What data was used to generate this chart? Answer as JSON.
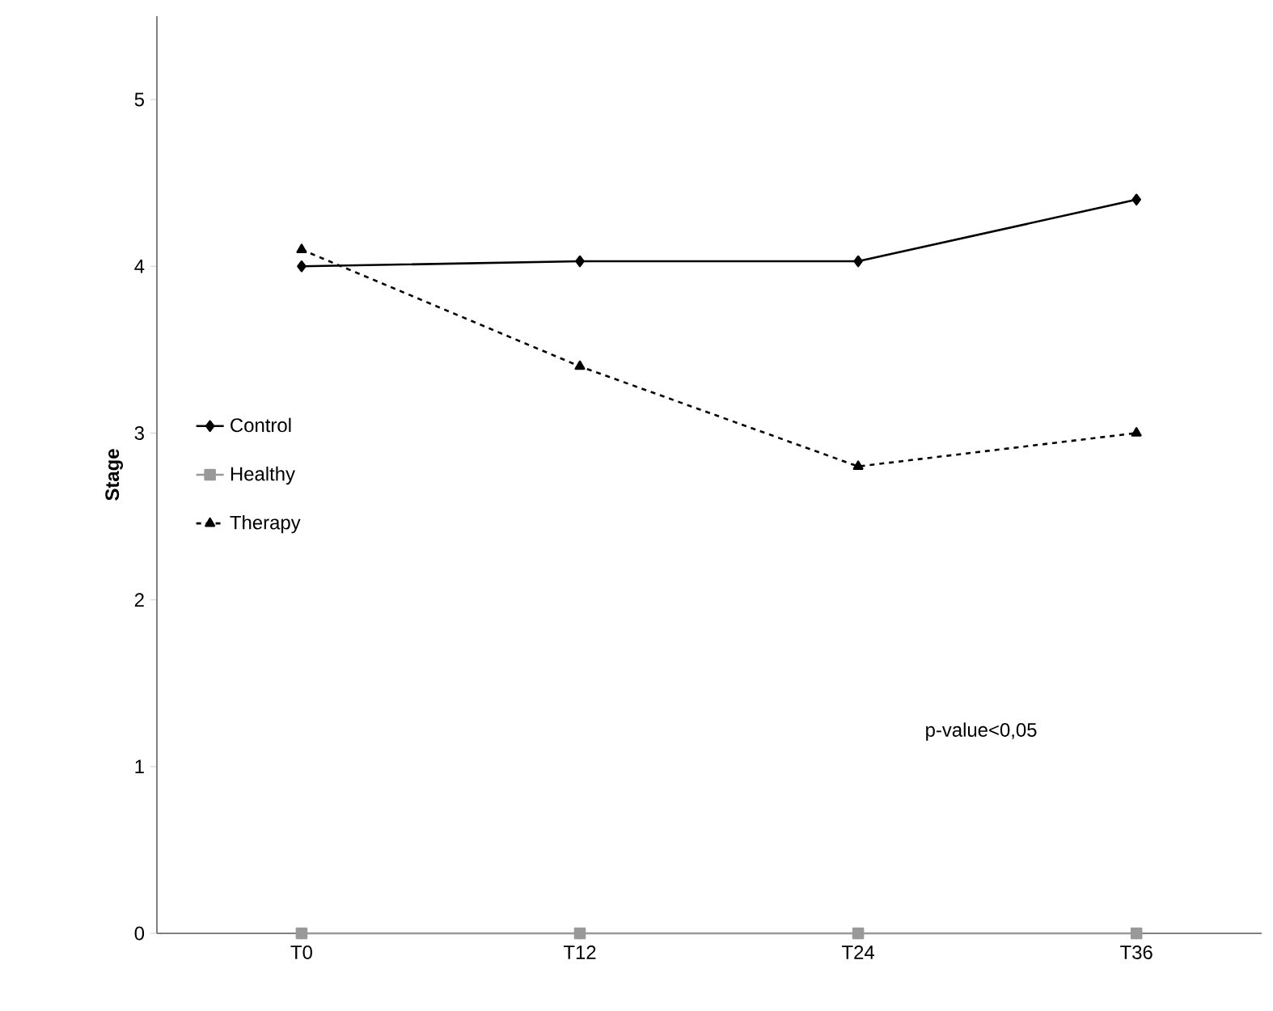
{
  "chart_data": {
    "type": "line",
    "ylabel": "Stage",
    "categories": [
      "T0",
      "T12",
      "T24",
      "T36"
    ],
    "series": [
      {
        "name": "Control",
        "color": "#000000",
        "values": [
          4.0,
          4.03,
          4.03,
          4.4
        ],
        "marker": "diamond",
        "line_style": "solid"
      },
      {
        "name": "Healthy",
        "color": "#999999",
        "values": [
          0,
          0,
          0,
          0
        ],
        "marker": "square",
        "line_style": "solid"
      },
      {
        "name": "Therapy",
        "color": "#000000",
        "values": [
          4.1,
          3.4,
          2.8,
          3.0
        ],
        "marker": "triangle",
        "line_style": "dashed"
      }
    ],
    "ylim": [
      0,
      5.5
    ],
    "yticks": [
      0,
      1,
      2,
      3,
      4,
      5
    ],
    "grid": false,
    "legend": "left",
    "annotations": [
      "p-value<0,05"
    ]
  }
}
